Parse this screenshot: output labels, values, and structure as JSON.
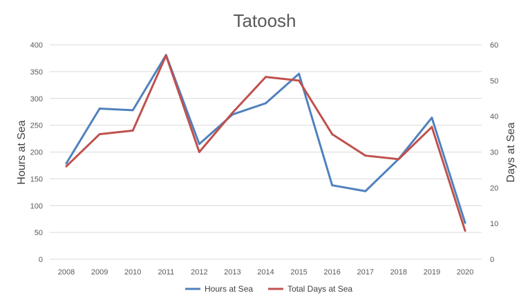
{
  "chart_data": {
    "type": "line",
    "title": "Tatoosh",
    "y_left_label": "Hours at Sea",
    "y_right_label": "Days at Sea",
    "categories": [
      "2008",
      "2009",
      "2010",
      "2011",
      "2012",
      "2013",
      "2014",
      "2015",
      "2016",
      "2017",
      "2018",
      "2019",
      "2020"
    ],
    "y_left_ticks": [
      "0",
      "50",
      "100",
      "150",
      "200",
      "250",
      "300",
      "350",
      "400"
    ],
    "y_right_ticks": [
      "0",
      "10",
      "20",
      "30",
      "40",
      "50",
      "60"
    ],
    "y_left_lim": [
      0,
      400
    ],
    "y_right_lim": [
      0,
      60
    ],
    "grid": true,
    "legend_position": "bottom",
    "series": [
      {
        "name": "Hours at Sea",
        "axis": "left",
        "color": "#4F81BD",
        "values": [
          179,
          281,
          278,
          381,
          215,
          270,
          291,
          346,
          138,
          127,
          187,
          264,
          68
        ]
      },
      {
        "name": "Total Days at Sea",
        "axis": "right",
        "color": "#C0504D",
        "values": [
          26,
          35,
          36,
          57,
          30,
          41,
          51,
          50,
          35,
          29,
          28,
          37,
          8
        ]
      }
    ]
  }
}
